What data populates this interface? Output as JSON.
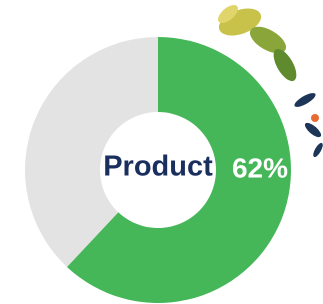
{
  "chart_data": {
    "type": "donut",
    "categories": [
      "Product",
      null
    ],
    "values": [
      62,
      38
    ],
    "value_labels": [
      "62%",
      null
    ],
    "colors": [
      "#45b758",
      "#e3e3e3"
    ]
  }
}
